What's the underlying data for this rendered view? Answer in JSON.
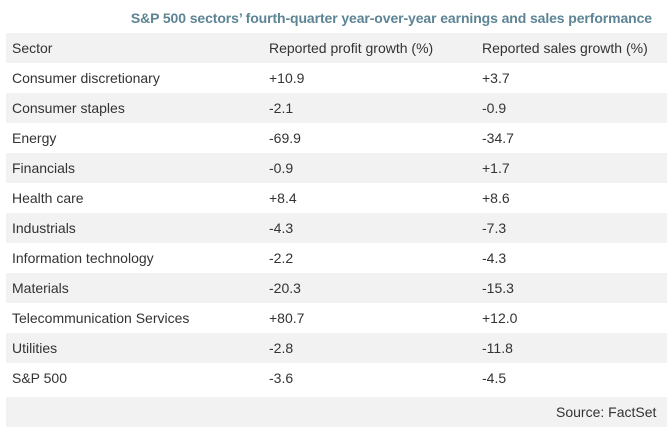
{
  "chart_data": {
    "type": "table",
    "title": "S&P 500 sectors’ fourth-quarter year-over-year earnings and sales performance",
    "columns": [
      "Sector",
      "Reported profit growth (%)",
      "Reported sales growth (%)"
    ],
    "rows": [
      {
        "sector": "Consumer discretionary",
        "profit": "+10.9",
        "sales": "+3.7"
      },
      {
        "sector": "Consumer staples",
        "profit": "-2.1",
        "sales": "-0.9"
      },
      {
        "sector": "Energy",
        "profit": "-69.9",
        "sales": "-34.7"
      },
      {
        "sector": "Financials",
        "profit": "-0.9",
        "sales": "+1.7"
      },
      {
        "sector": "Health care",
        "profit": "+8.4",
        "sales": "+8.6"
      },
      {
        "sector": "Industrials",
        "profit": "-4.3",
        "sales": "-7.3"
      },
      {
        "sector": "Information technology",
        "profit": "-2.2",
        "sales": "-4.3"
      },
      {
        "sector": "Materials",
        "profit": "-20.3",
        "sales": "-15.3"
      },
      {
        "sector": "Telecommunication Services",
        "profit": "+80.7",
        "sales": "+12.0"
      },
      {
        "sector": "Utilities",
        "profit": "-2.8",
        "sales": "-11.8"
      },
      {
        "sector": "S&P 500",
        "profit": "-3.6",
        "sales": "-4.5"
      }
    ],
    "source": "Source: FactSet"
  },
  "colors": {
    "title": "#5d8494",
    "row_shade": "#f2f2f2",
    "text": "#333333"
  }
}
